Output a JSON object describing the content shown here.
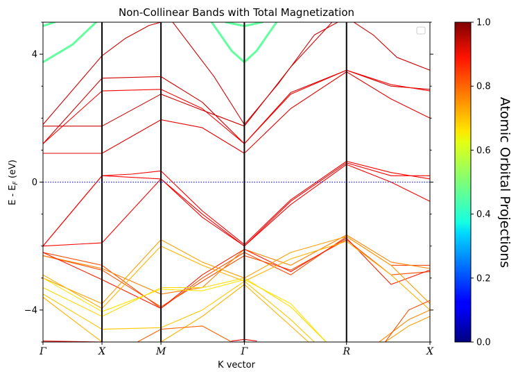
{
  "chart_data": {
    "type": "line",
    "title": "Non-Collinear Bands with Total Magnetization",
    "xlabel": "K vector",
    "ylabel": "E - E",
    "ylabel_sub": "F",
    "ylabel_unit": " (eV)",
    "ylim": [
      -5.0,
      5.0
    ],
    "yticks": [
      -4,
      0,
      4
    ],
    "ytick_labels": [
      "−4",
      "0",
      "4"
    ],
    "fermi_level": 0,
    "kpoints": [
      {
        "label": "Γ",
        "x": 0.0
      },
      {
        "label": "X",
        "x": 0.5
      },
      {
        "label": "M",
        "x": 1.0
      },
      {
        "label": "Γ",
        "x": 1.707
      },
      {
        "label": "R",
        "x": 2.573
      },
      {
        "label": "X",
        "x": 3.28
      }
    ],
    "legend": {
      "location": "upper-right",
      "entries": []
    },
    "colorbar": {
      "label": "Atomic Orbital Projections",
      "range": [
        0.0,
        1.0
      ],
      "ticks": [
        0.0,
        0.2,
        0.4,
        0.6,
        0.8,
        1.0
      ],
      "tick_labels": [
        "0.0",
        "0.2",
        "0.4",
        "0.6",
        "0.8",
        "1.0"
      ],
      "colormap": "jet"
    },
    "series": [
      {
        "proj": 0.47,
        "points": [
          [
            0,
            3.75
          ],
          [
            0.25,
            4.3
          ],
          [
            0.45,
            5.0
          ]
        ]
      },
      {
        "proj": 0.47,
        "points": [
          [
            1.43,
            5.0
          ],
          [
            1.6,
            4.1
          ],
          [
            1.707,
            3.75
          ],
          [
            1.81,
            4.1
          ],
          [
            1.98,
            5.0
          ]
        ]
      },
      {
        "proj": 0.47,
        "points": [
          [
            1.55,
            5.0
          ],
          [
            1.707,
            4.88
          ],
          [
            1.86,
            5.0
          ]
        ]
      },
      {
        "proj": 0.47,
        "points": [
          [
            0,
            4.88
          ],
          [
            0.1,
            5.0
          ]
        ]
      },
      {
        "proj": 0.92,
        "points": [
          [
            0,
            1.8
          ],
          [
            0.5,
            3.95
          ],
          [
            0.7,
            4.5
          ],
          [
            0.9,
            4.9
          ],
          [
            1.0,
            5.0
          ]
        ]
      },
      {
        "proj": 0.92,
        "points": [
          [
            1.1,
            5.0
          ],
          [
            1.45,
            3.3
          ],
          [
            1.707,
            1.8
          ],
          [
            2.0,
            3.1
          ],
          [
            2.3,
            4.6
          ],
          [
            2.573,
            5.15
          ],
          [
            2.8,
            4.6
          ],
          [
            3.0,
            3.9
          ],
          [
            3.28,
            3.5
          ]
        ]
      },
      {
        "proj": 0.92,
        "points": [
          [
            0,
            1.2
          ],
          [
            0.5,
            3.25
          ],
          [
            1.0,
            3.3
          ],
          [
            1.35,
            2.5
          ],
          [
            1.707,
            1.2
          ],
          [
            2.1,
            2.8
          ],
          [
            2.573,
            3.5
          ],
          [
            2.95,
            3.0
          ],
          [
            3.28,
            2.9
          ]
        ]
      },
      {
        "proj": 0.88,
        "points": [
          [
            0,
            1.2
          ],
          [
            0.5,
            2.85
          ],
          [
            1.0,
            2.9
          ],
          [
            1.35,
            2.3
          ],
          [
            1.707,
            1.2
          ],
          [
            2.1,
            2.75
          ],
          [
            2.573,
            3.5
          ],
          [
            2.95,
            3.05
          ],
          [
            3.28,
            2.85
          ]
        ]
      },
      {
        "proj": 0.9,
        "points": [
          [
            0,
            0.9
          ],
          [
            0.5,
            0.9
          ],
          [
            1.0,
            1.95
          ],
          [
            1.35,
            1.7
          ],
          [
            1.707,
            0.9
          ],
          [
            2.1,
            2.3
          ],
          [
            2.573,
            3.45
          ],
          [
            2.95,
            2.6
          ],
          [
            3.28,
            2.0
          ]
        ]
      },
      {
        "proj": 0.92,
        "points": [
          [
            0,
            1.75
          ],
          [
            0.5,
            1.75
          ],
          [
            1.0,
            2.75
          ],
          [
            1.35,
            2.25
          ],
          [
            1.707,
            1.75
          ],
          [
            2.1,
            3.6
          ],
          [
            2.45,
            5.0
          ]
        ]
      },
      {
        "proj": 0.88,
        "points": [
          [
            0,
            -2.0
          ],
          [
            0.25,
            -0.9
          ],
          [
            0.5,
            0.2
          ],
          [
            0.75,
            0.15
          ],
          [
            1.0,
            0.1
          ],
          [
            1.35,
            -1.0
          ],
          [
            1.707,
            -2.0
          ],
          [
            2.1,
            -0.6
          ],
          [
            2.573,
            0.6
          ],
          [
            2.95,
            0.2
          ],
          [
            3.28,
            0.2
          ]
        ]
      },
      {
        "proj": 0.88,
        "points": [
          [
            0,
            -2.0
          ],
          [
            0.25,
            -0.9
          ],
          [
            0.5,
            0.2
          ],
          [
            0.75,
            0.25
          ],
          [
            1.0,
            0.35
          ],
          [
            1.35,
            -0.9
          ],
          [
            1.707,
            -1.95
          ],
          [
            2.1,
            -0.55
          ],
          [
            2.573,
            0.65
          ],
          [
            2.95,
            0.3
          ],
          [
            3.28,
            0.1
          ]
        ]
      },
      {
        "proj": 0.88,
        "points": [
          [
            0,
            -2.0
          ],
          [
            0.5,
            -1.9
          ],
          [
            1.0,
            0.1
          ],
          [
            1.35,
            -1.1
          ],
          [
            1.707,
            -2.0
          ],
          [
            2.1,
            -0.7
          ],
          [
            2.573,
            0.55
          ],
          [
            2.95,
            0.0
          ],
          [
            3.28,
            -0.6
          ]
        ]
      },
      {
        "proj": 0.8,
        "points": [
          [
            0,
            -2.2
          ],
          [
            0.5,
            -2.6
          ],
          [
            1.0,
            -3.95
          ],
          [
            1.35,
            -3.0
          ],
          [
            1.707,
            -2.2
          ],
          [
            2.1,
            -2.9
          ],
          [
            2.573,
            -1.7
          ],
          [
            2.95,
            -2.6
          ],
          [
            3.28,
            -2.6
          ]
        ]
      },
      {
        "proj": 0.8,
        "points": [
          [
            0,
            -2.3
          ],
          [
            0.5,
            -2.75
          ],
          [
            1.0,
            -3.9
          ],
          [
            1.35,
            -3.1
          ],
          [
            1.707,
            -2.3
          ],
          [
            2.1,
            -2.75
          ],
          [
            2.573,
            -1.8
          ],
          [
            2.95,
            -2.9
          ],
          [
            3.28,
            -2.8
          ]
        ]
      },
      {
        "proj": 0.75,
        "points": [
          [
            0,
            -2.3
          ],
          [
            0.5,
            -2.7
          ],
          [
            1.0,
            -3.5
          ],
          [
            1.35,
            -3.3
          ],
          [
            1.707,
            -2.1
          ],
          [
            2.1,
            -2.6
          ],
          [
            2.573,
            -1.65
          ],
          [
            2.95,
            -2.5
          ],
          [
            3.28,
            -2.7
          ]
        ]
      },
      {
        "proj": 0.85,
        "points": [
          [
            0,
            -2.2
          ],
          [
            0.5,
            -3.05
          ],
          [
            1.0,
            -3.95
          ],
          [
            1.35,
            -2.9
          ],
          [
            1.707,
            -2.1
          ],
          [
            2.1,
            -2.8
          ],
          [
            2.573,
            -1.75
          ],
          [
            2.95,
            -3.2
          ],
          [
            3.28,
            -2.75
          ]
        ]
      },
      {
        "proj": 0.72,
        "points": [
          [
            0,
            -3.0
          ],
          [
            0.5,
            -3.8
          ],
          [
            1.0,
            -1.8
          ],
          [
            1.35,
            -2.5
          ],
          [
            1.707,
            -3.0
          ],
          [
            2.1,
            -2.2
          ],
          [
            2.573,
            -1.7
          ],
          [
            2.95,
            -2.6
          ],
          [
            3.28,
            -3.8
          ]
        ]
      },
      {
        "proj": 0.7,
        "points": [
          [
            0,
            -2.9
          ],
          [
            0.5,
            -3.95
          ],
          [
            1.0,
            -2.0
          ],
          [
            1.35,
            -2.6
          ],
          [
            1.707,
            -3.1
          ],
          [
            2.1,
            -2.4
          ],
          [
            2.573,
            -1.85
          ],
          [
            2.95,
            -2.9
          ],
          [
            3.28,
            -4.0
          ]
        ]
      },
      {
        "proj": 0.65,
        "points": [
          [
            0,
            -3.0
          ],
          [
            0.5,
            -4.05
          ],
          [
            1.0,
            -3.35
          ],
          [
            1.35,
            -3.4
          ],
          [
            1.707,
            -3.05
          ],
          [
            2.1,
            -3.8
          ],
          [
            2.4,
            -5.0
          ]
        ]
      },
      {
        "proj": 0.66,
        "points": [
          [
            0,
            -3.3
          ],
          [
            0.5,
            -4.2
          ],
          [
            1.0,
            -3.3
          ],
          [
            1.35,
            -3.3
          ],
          [
            1.707,
            -3.0
          ],
          [
            2.1,
            -3.9
          ],
          [
            2.4,
            -5.0
          ]
        ]
      },
      {
        "proj": 0.68,
        "points": [
          [
            0,
            -3.5
          ],
          [
            0.5,
            -4.6
          ],
          [
            1.0,
            -4.55
          ],
          [
            1.35,
            -4.0
          ],
          [
            1.707,
            -3.1
          ],
          [
            2.1,
            -4.3
          ],
          [
            2.3,
            -5.0
          ]
        ]
      },
      {
        "proj": 0.7,
        "points": [
          [
            0,
            -3.6
          ],
          [
            0.5,
            -5.0
          ],
          [
            1.0,
            -5.0
          ],
          [
            1.35,
            -4.2
          ],
          [
            1.707,
            -3.2
          ],
          [
            2.1,
            -4.5
          ],
          [
            2.25,
            -5.0
          ]
        ]
      },
      {
        "proj": 0.74,
        "points": [
          [
            2.85,
            -5.0
          ],
          [
            3.1,
            -4.3
          ],
          [
            3.28,
            -4.0
          ]
        ]
      },
      {
        "proj": 0.72,
        "points": [
          [
            2.9,
            -5.0
          ],
          [
            3.1,
            -4.5
          ],
          [
            3.28,
            -4.2
          ]
        ]
      },
      {
        "proj": 0.8,
        "points": [
          [
            2.9,
            -5.0
          ],
          [
            3.1,
            -4.0
          ],
          [
            3.28,
            -3.7
          ]
        ]
      },
      {
        "proj": 0.78,
        "points": [
          [
            0.8,
            -5.0
          ],
          [
            1.0,
            -4.6
          ],
          [
            1.35,
            -4.5
          ],
          [
            1.6,
            -5.0
          ]
        ]
      },
      {
        "proj": 0.9,
        "points": [
          [
            0,
            -4.97
          ],
          [
            0.5,
            -5.0
          ]
        ]
      },
      {
        "proj": 0.9,
        "points": [
          [
            1.6,
            -4.97
          ],
          [
            1.707,
            -4.92
          ],
          [
            1.81,
            -4.97
          ]
        ]
      }
    ]
  }
}
